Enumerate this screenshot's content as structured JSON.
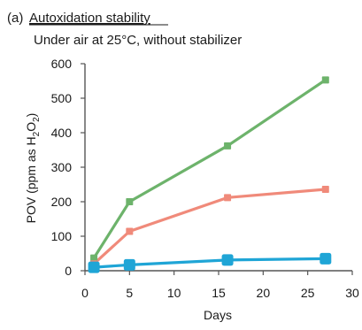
{
  "panel": {
    "label": "(a)",
    "title": "Autoxidation stability",
    "subtitle": "Under air at 25°C, without stabilizer"
  },
  "chart_data": {
    "type": "line",
    "xlabel": "Days",
    "ylabel_main": "POV (ppm as H",
    "ylabel_sub1": "2",
    "ylabel_mid": "O",
    "ylabel_sub2": "2",
    "ylabel_end": ")",
    "xlim": [
      0,
      30
    ],
    "ylim": [
      0,
      600
    ],
    "xticks": [
      0,
      5,
      10,
      15,
      20,
      25,
      30
    ],
    "yticks": [
      0,
      100,
      200,
      300,
      400,
      500,
      600
    ],
    "grid": false,
    "legend": "none",
    "series": [
      {
        "color": "#6db36b",
        "marker": "square-small",
        "x": [
          1,
          5,
          16,
          27
        ],
        "values": [
          37,
          200,
          362,
          553
        ]
      },
      {
        "color": "#f08a7a",
        "marker": "square-small",
        "x": [
          1,
          5,
          16,
          27
        ],
        "values": [
          20,
          114,
          212,
          236
        ]
      },
      {
        "color": "#1fa5d6",
        "marker": "square-large",
        "x": [
          1,
          5,
          16,
          27
        ],
        "values": [
          10,
          17,
          31,
          35
        ]
      }
    ]
  }
}
